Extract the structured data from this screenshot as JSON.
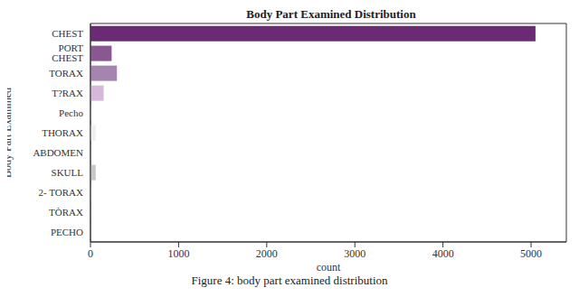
{
  "chart_data": {
    "type": "bar",
    "title": "Body Part Examined Distribution",
    "x_label": "count",
    "y_label": "Body Part Examined",
    "caption": "Figure 4: body part examined distribution",
    "orientation": "horizontal",
    "categories": [
      "CHEST",
      "PORT CHEST",
      "TORAX",
      "T?RAX",
      "Pecho",
      "THORAX",
      "ABDOMEN",
      "SKULL",
      "2- TORAX",
      "TÒRAX",
      "PECHO"
    ],
    "values": [
      5050,
      240,
      300,
      150,
      5,
      60,
      3,
      60,
      5,
      3,
      2
    ],
    "colors": [
      "#6b2a74",
      "#8a5792",
      "#a684b0",
      "#d6b8d8",
      "#ece0ec",
      "#f0f0f0",
      "#e4e4e4",
      "#c8c8c8",
      "#dcdcdc",
      "#c4c4c4",
      "#b4b4b4"
    ],
    "xlim": [
      0,
      5400
    ],
    "xticks": [
      0,
      1000,
      2000,
      3000,
      4000,
      5000
    ],
    "grid": false
  }
}
